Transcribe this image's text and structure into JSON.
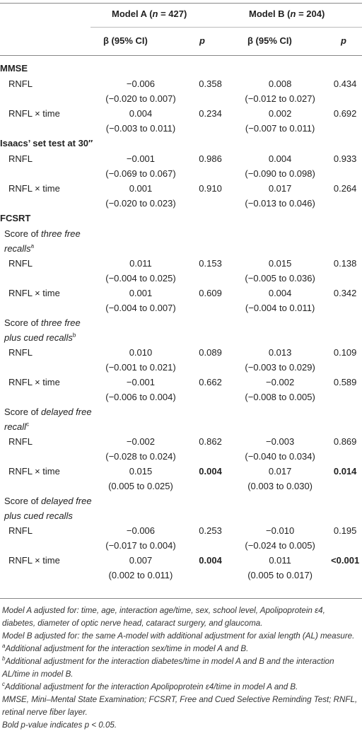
{
  "header": {
    "model_a_prefix": "Model A (",
    "model_a_n": "n",
    "model_a_suffix": " = 427)",
    "model_b_prefix": "Model B (",
    "model_b_n": "n",
    "model_b_suffix": " = 204)",
    "beta_ci": "β (95% CI)",
    "p": "p"
  },
  "sections": {
    "mmse": "MMSE",
    "isaacs": "Isaacs’ set test at 30″",
    "fcsrt": "FCSRT"
  },
  "subheads": {
    "three_free": {
      "pre": "Score of ",
      "italic": "three free recalls",
      "sup": "a"
    },
    "three_free_cued": {
      "pre": "Score of ",
      "italic": "three free plus cued recalls",
      "sup": "b"
    },
    "delayed_free": {
      "pre": "Score of ",
      "italic": "delayed free recall",
      "sup": "c"
    },
    "delayed_free_cued": {
      "pre": "Score of ",
      "italic": "delayed free plus cued recalls",
      "sup": ""
    }
  },
  "rows": {
    "mmse_rnfl": {
      "label": "RNFL",
      "a_beta": "−0.006",
      "a_ci": "(−0.020 to 0.007)",
      "a_p": "0.358",
      "b_beta": "0.008",
      "b_ci": "(−0.012 to 0.027)",
      "b_p": "0.434"
    },
    "mmse_time": {
      "label": "RNFL × time",
      "a_beta": "0.004",
      "a_ci": "(−0.003 to 0.011)",
      "a_p": "0.234",
      "b_beta": "0.002",
      "b_ci": "(−0.007 to 0.011)",
      "b_p": "0.692"
    },
    "isaacs_rnfl": {
      "label": "RNFL",
      "a_beta": "−0.001",
      "a_ci": "(−0.069 to 0.067)",
      "a_p": "0.986",
      "b_beta": "0.004",
      "b_ci": "(−0.090 to 0.098)",
      "b_p": "0.933"
    },
    "isaacs_time": {
      "label": "RNFL × time",
      "a_beta": "0.001",
      "a_ci": "(−0.020 to 0.023)",
      "a_p": "0.910",
      "b_beta": "0.017",
      "b_ci": "(−0.013 to 0.046)",
      "b_p": "0.264"
    },
    "tf_rnfl": {
      "label": "RNFL",
      "a_beta": "0.011",
      "a_ci": "(−0.004 to 0.025)",
      "a_p": "0.153",
      "b_beta": "0.015",
      "b_ci": "(−0.005 to 0.036)",
      "b_p": "0.138"
    },
    "tf_time": {
      "label": "RNFL × time",
      "a_beta": "0.001",
      "a_ci": "(−0.004 to 0.007)",
      "a_p": "0.609",
      "b_beta": "0.004",
      "b_ci": "(−0.004 to 0.011)",
      "b_p": "0.342"
    },
    "tfc_rnfl": {
      "label": "RNFL",
      "a_beta": "0.010",
      "a_ci": "(−0.001 to 0.021)",
      "a_p": "0.089",
      "b_beta": "0.013",
      "b_ci": "(−0.003 to 0.029)",
      "b_p": "0.109"
    },
    "tfc_time": {
      "label": "RNFL × time",
      "a_beta": "−0.001",
      "a_ci": "(−0.006 to 0.004)",
      "a_p": "0.662",
      "b_beta": "−0.002",
      "b_ci": "(−0.008 to 0.005)",
      "b_p": "0.589"
    },
    "df_rnfl": {
      "label": "RNFL",
      "a_beta": "−0.002",
      "a_ci": "(−0.028 to 0.024)",
      "a_p": "0.862",
      "b_beta": "−0.003",
      "b_ci": "(−0.040 to 0.034)",
      "b_p": "0.869"
    },
    "df_time": {
      "label": "RNFL × time",
      "a_beta": "0.015",
      "a_ci": "(0.005 to 0.025)",
      "a_p": "0.004",
      "b_beta": "0.017",
      "b_ci": "(0.003 to 0.030)",
      "b_p": "0.014"
    },
    "dfc_rnfl": {
      "label": "RNFL",
      "a_beta": "−0.006",
      "a_ci": "(−0.017 to 0.004)",
      "a_p": "0.253",
      "b_beta": "−0.010",
      "b_ci": "(−0.024 to 0.005)",
      "b_p": "0.195"
    },
    "dfc_time": {
      "label": "RNFL × time",
      "a_beta": "0.007",
      "a_ci": "(0.002 to 0.011)",
      "a_p": "0.004",
      "b_beta": "0.011",
      "b_ci": "(0.005 to 0.017)",
      "b_p": "<0.001"
    }
  },
  "notes": {
    "n1": "Model A adjusted for: time, age, interaction age/time, sex, school level, Apolipoprotein ε4, diabetes, diameter of optic nerve head, cataract surgery, and glaucoma.",
    "n2": "Model B adjusted for: the same A-model with additional adjustment for axial length (AL) measure.",
    "n3_sup": "a",
    "n3": "Additional adjustment for the interaction sex/time in model A and B.",
    "n4_sup": "b",
    "n4": "Additional adjustment for the interaction diabetes/time in model A and B and the interaction AL/time in model B.",
    "n5_sup": "c",
    "n5": "Additional adjustment for the interaction Apolipoprotein ε4/time in model A and B.",
    "n6": "MMSE, Mini–Mental State Examination; FCSRT, Free and Cued Selective Reminding Test; RNFL, retinal nerve fiber layer.",
    "n7": "Bold p-value indicates p < 0.05."
  }
}
